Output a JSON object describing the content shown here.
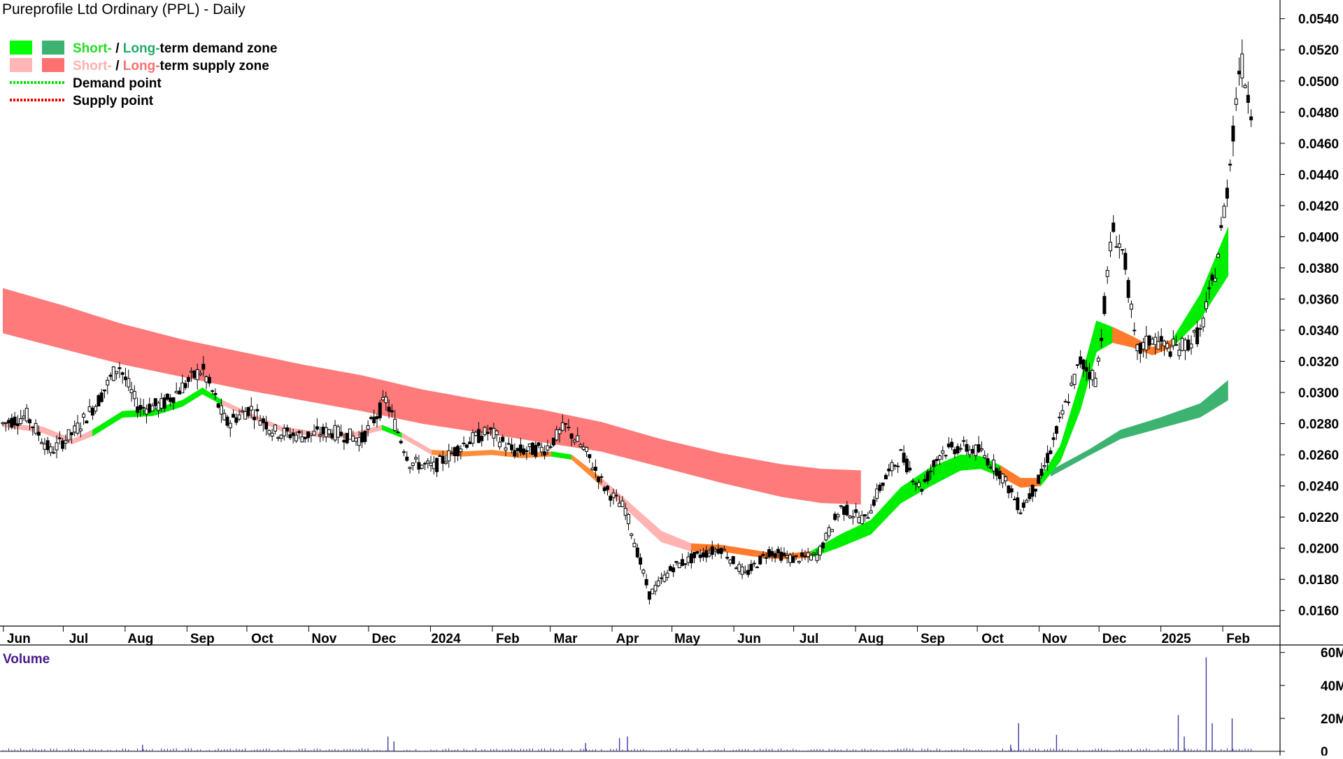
{
  "chart_data": {
    "type": "candlestick",
    "title": "Pureprofile Ltd Ordinary (PPL) - Daily",
    "legend": {
      "placement": "top-left",
      "items": [
        {
          "parts": [
            "Short-",
            " / ",
            "Long-",
            "term demand zone"
          ],
          "part_colors": [
            "#22dd22",
            "#000000",
            "#22aa66",
            "#000000"
          ],
          "swatches": [
            "#00ff00",
            "#3cb371"
          ]
        },
        {
          "parts": [
            "Short-",
            " / ",
            "Long-",
            "term supply zone"
          ],
          "part_colors": [
            "#ffb0b0",
            "#000000",
            "#ff6f6f",
            "#000000"
          ],
          "swatches": [
            "#ffb6b6",
            "#ff7070"
          ]
        },
        {
          "parts": [
            "Demand point"
          ],
          "part_colors": [
            "#000000"
          ],
          "line": "#00dd00"
        },
        {
          "parts": [
            "Supply point"
          ],
          "part_colors": [
            "#000000"
          ],
          "line": "#ee0000"
        }
      ]
    },
    "y_axis": {
      "position": "right",
      "ylim": [
        0.015,
        0.0552
      ],
      "ticks": [
        "0.0540",
        "0.0520",
        "0.0500",
        "0.0480",
        "0.0460",
        "0.0440",
        "0.0420",
        "0.0400",
        "0.0380",
        "0.0360",
        "0.0340",
        "0.0320",
        "0.0300",
        "0.0280",
        "0.0260",
        "0.0240",
        "0.0220",
        "0.0200",
        "0.0180",
        "0.0160"
      ]
    },
    "x_axis": {
      "labels": [
        {
          "label": "Jun",
          "day": 8
        },
        {
          "label": "Jul",
          "day": 38
        },
        {
          "label": "Aug",
          "day": 69
        },
        {
          "label": "Sep",
          "day": 100
        },
        {
          "label": "Oct",
          "day": 130
        },
        {
          "label": "Nov",
          "day": 161
        },
        {
          "label": "Dec",
          "day": 191
        },
        {
          "label": "2024",
          "day": 222
        },
        {
          "label": "Feb",
          "day": 253
        },
        {
          "label": "Mar",
          "day": 282
        },
        {
          "label": "Apr",
          "day": 313
        },
        {
          "label": "May",
          "day": 343
        },
        {
          "label": "Jun",
          "day": 374
        },
        {
          "label": "Jul",
          "day": 404
        },
        {
          "label": "Aug",
          "day": 435
        },
        {
          "label": "Sep",
          "day": 466
        },
        {
          "label": "Oct",
          "day": 496
        },
        {
          "label": "Nov",
          "day": 527
        },
        {
          "label": "Dec",
          "day": 557
        },
        {
          "label": "2025",
          "day": 588
        },
        {
          "label": "Feb",
          "day": 619
        }
      ],
      "day_range": [
        0,
        640
      ]
    },
    "price_keypoints": [
      [
        0,
        0.028
      ],
      [
        12,
        0.0285
      ],
      [
        24,
        0.0262
      ],
      [
        36,
        0.0275
      ],
      [
        48,
        0.0295
      ],
      [
        58,
        0.0318
      ],
      [
        68,
        0.029
      ],
      [
        80,
        0.0292
      ],
      [
        92,
        0.0306
      ],
      [
        100,
        0.0315
      ],
      [
        112,
        0.028
      ],
      [
        124,
        0.029
      ],
      [
        136,
        0.0275
      ],
      [
        150,
        0.0272
      ],
      [
        164,
        0.0275
      ],
      [
        180,
        0.027
      ],
      [
        192,
        0.0295
      ],
      [
        204,
        0.0255
      ],
      [
        216,
        0.0252
      ],
      [
        232,
        0.0268
      ],
      [
        244,
        0.0275
      ],
      [
        256,
        0.0262
      ],
      [
        272,
        0.0264
      ],
      [
        282,
        0.0278
      ],
      [
        292,
        0.0262
      ],
      [
        302,
        0.0238
      ],
      [
        312,
        0.0225
      ],
      [
        324,
        0.017
      ],
      [
        336,
        0.0188
      ],
      [
        348,
        0.0195
      ],
      [
        360,
        0.02
      ],
      [
        372,
        0.0183
      ],
      [
        384,
        0.0198
      ],
      [
        396,
        0.0193
      ],
      [
        408,
        0.0195
      ],
      [
        420,
        0.0226
      ],
      [
        432,
        0.0218
      ],
      [
        440,
        0.024
      ],
      [
        450,
        0.026
      ],
      [
        460,
        0.0238
      ],
      [
        470,
        0.0262
      ],
      [
        480,
        0.0265
      ],
      [
        490,
        0.0262
      ],
      [
        500,
        0.0248
      ],
      [
        510,
        0.0225
      ],
      [
        520,
        0.0245
      ],
      [
        530,
        0.0282
      ],
      [
        540,
        0.032
      ],
      [
        548,
        0.0308
      ],
      [
        556,
        0.0405
      ],
      [
        562,
        0.0388
      ],
      [
        568,
        0.0325
      ],
      [
        576,
        0.0335
      ],
      [
        584,
        0.0328
      ],
      [
        592,
        0.033
      ],
      [
        600,
        0.0338
      ],
      [
        608,
        0.038
      ],
      [
        614,
        0.0435
      ],
      [
        620,
        0.0515
      ],
      [
        626,
        0.048
      ]
    ],
    "long_supply_zone": [
      [
        0,
        0.0367,
        0.0338
      ],
      [
        30,
        0.0356,
        0.0328
      ],
      [
        60,
        0.0344,
        0.0318
      ],
      [
        90,
        0.0334,
        0.031
      ],
      [
        120,
        0.0326,
        0.0302
      ],
      [
        150,
        0.0318,
        0.0295
      ],
      [
        180,
        0.0311,
        0.0288
      ],
      [
        210,
        0.0302,
        0.028
      ],
      [
        240,
        0.0295,
        0.0274
      ],
      [
        270,
        0.0289,
        0.0268
      ],
      [
        300,
        0.0281,
        0.0262
      ],
      [
        330,
        0.027,
        0.0252
      ],
      [
        360,
        0.0261,
        0.0242
      ],
      [
        390,
        0.0254,
        0.0233
      ],
      [
        410,
        0.0251,
        0.0229
      ],
      [
        430,
        0.025,
        0.0228
      ]
    ],
    "short_term_band": [
      [
        0,
        0.028,
        0.0278,
        "s"
      ],
      [
        20,
        0.0278,
        0.0274,
        "s"
      ],
      [
        35,
        0.027,
        0.0267,
        "s"
      ],
      [
        45,
        0.0276,
        0.0272,
        "d"
      ],
      [
        60,
        0.0288,
        0.0284,
        "d"
      ],
      [
        75,
        0.0289,
        0.0285,
        "d"
      ],
      [
        90,
        0.0295,
        0.0291,
        "d"
      ],
      [
        100,
        0.0303,
        0.0299,
        "d"
      ],
      [
        110,
        0.0295,
        0.0292,
        "s"
      ],
      [
        125,
        0.0286,
        0.0283,
        "s"
      ],
      [
        140,
        0.0278,
        0.0275,
        "s"
      ],
      [
        160,
        0.0274,
        0.0271,
        "s"
      ],
      [
        175,
        0.0274,
        0.0271,
        "s"
      ],
      [
        190,
        0.0279,
        0.0276,
        "d"
      ],
      [
        200,
        0.0274,
        0.0271,
        "s"
      ],
      [
        215,
        0.0263,
        0.026,
        "s"
      ],
      [
        230,
        0.0262,
        0.0259,
        "s"
      ],
      [
        245,
        0.0263,
        0.026,
        "s"
      ],
      [
        260,
        0.0261,
        0.0258,
        "s"
      ],
      [
        275,
        0.0262,
        0.0259,
        "d"
      ],
      [
        285,
        0.026,
        0.0257,
        "s"
      ],
      [
        300,
        0.0245,
        0.024,
        "s"
      ],
      [
        315,
        0.0228,
        0.0222,
        "s"
      ],
      [
        330,
        0.0211,
        0.0204,
        "s"
      ],
      [
        345,
        0.0203,
        0.0198,
        "s"
      ],
      [
        360,
        0.0202,
        0.0198,
        "s"
      ],
      [
        375,
        0.0199,
        0.0195,
        "s"
      ],
      [
        390,
        0.0196,
        0.0193,
        "s"
      ],
      [
        405,
        0.0198,
        0.0194,
        "d"
      ],
      [
        420,
        0.0209,
        0.0201,
        "d"
      ],
      [
        435,
        0.0218,
        0.0209,
        "d"
      ],
      [
        450,
        0.0239,
        0.0229,
        "d"
      ],
      [
        465,
        0.0252,
        0.024,
        "d"
      ],
      [
        480,
        0.026,
        0.025,
        "d"
      ],
      [
        490,
        0.0259,
        0.0251,
        "d"
      ],
      [
        500,
        0.0253,
        0.0246,
        "s"
      ],
      [
        510,
        0.0245,
        0.0239,
        "s"
      ],
      [
        520,
        0.0245,
        0.024,
        "d"
      ],
      [
        530,
        0.0266,
        0.0256,
        "d"
      ],
      [
        540,
        0.0308,
        0.0289,
        "d"
      ],
      [
        548,
        0.0346,
        0.0326,
        "d"
      ],
      [
        556,
        0.0342,
        0.0332,
        "s"
      ],
      [
        566,
        0.0336,
        0.0329,
        "s"
      ],
      [
        576,
        0.0329,
        0.0324,
        "s"
      ],
      [
        586,
        0.0334,
        0.0329,
        "d"
      ],
      [
        600,
        0.0363,
        0.0347,
        "d"
      ],
      [
        614,
        0.0406,
        0.0375,
        "d"
      ]
    ],
    "long_demand_zone": [
      [
        525,
        0.025,
        0.0246
      ],
      [
        545,
        0.0264,
        0.026
      ],
      [
        560,
        0.0276,
        0.027
      ],
      [
        580,
        0.0284,
        0.0277
      ],
      [
        600,
        0.0293,
        0.0284
      ],
      [
        614,
        0.0308,
        0.0295
      ]
    ],
    "volume": {
      "label": "Volume",
      "ticks": [
        "60M",
        "40M",
        "20M",
        "0"
      ],
      "ylim": [
        0,
        62
      ],
      "spikes": [
        [
          70,
          4
        ],
        [
          193,
          9
        ],
        [
          196,
          6
        ],
        [
          292,
          5
        ],
        [
          309,
          8
        ],
        [
          313,
          9
        ],
        [
          505,
          4
        ],
        [
          509,
          17
        ],
        [
          528,
          10
        ],
        [
          589,
          22
        ],
        [
          592,
          9
        ],
        [
          603,
          57
        ],
        [
          606,
          17
        ],
        [
          616,
          20
        ]
      ]
    }
  }
}
